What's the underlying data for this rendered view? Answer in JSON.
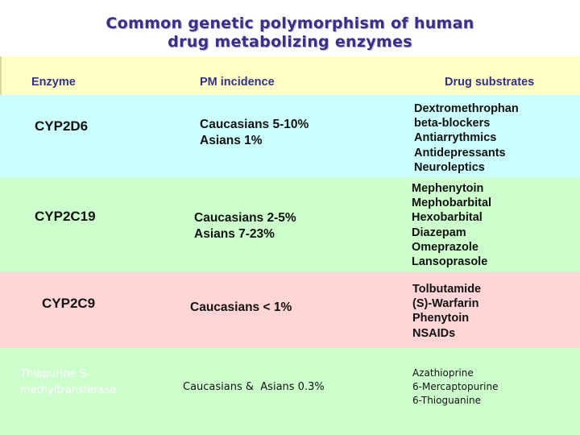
{
  "title": {
    "line1": "Common genetic polymorphism of human",
    "line2": "drug metabolizing enzymes"
  },
  "headers": {
    "enzyme": "Enzyme",
    "pm_incidence": "PM incidence",
    "drug_substrates": "Drug substrates"
  },
  "rows": [
    {
      "enzyme": "CYP2D6",
      "incidence": [
        "Caucasians 5-10%",
        "Asians 1%"
      ],
      "drugs": [
        "Dextromethrophan",
        "beta-blockers",
        "Antiarrythmics",
        "Antidepressants",
        "Neuroleptics"
      ],
      "band_color": "#ccffff"
    },
    {
      "enzyme": "CYP2C19",
      "incidence": [
        "Caucasians 2-5%",
        "Asians 7-23%"
      ],
      "drugs": [
        "Mephenytoin",
        "Mephobarbital",
        "Hexobarbital",
        "Diazepam",
        "Omeprazole",
        "Lansoprasole"
      ],
      "band_color": "#ccffcc"
    },
    {
      "enzyme": "CYP2C9",
      "incidence": [
        "Caucasians < 1%"
      ],
      "drugs": [
        "Tolbutamide",
        "(S)-Warfarin",
        "Phenytoin",
        "NSAIDs"
      ],
      "band_color": "#ffd5d5"
    },
    {
      "enzyme_lines": [
        "Thiopurine S-",
        "methyltransferase"
      ],
      "incidence": [
        "Caucasians &  Asians 0.3%"
      ],
      "drugs": [
        "Azathioprine",
        "6-Mercaptopurine",
        "6-Thioguanine"
      ],
      "band_color": "#ccffcc"
    }
  ],
  "colors": {
    "title": "#3b2f86",
    "header_band": "#ffffc6",
    "header_text": "#33308a"
  }
}
